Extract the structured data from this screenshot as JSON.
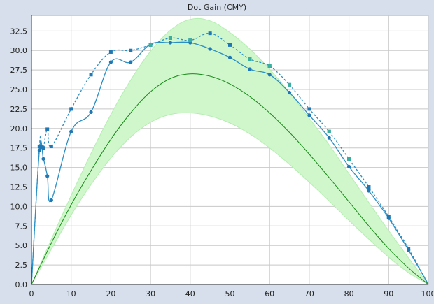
{
  "chart_data": {
    "type": "line",
    "title": "Dot Gain (CMY)",
    "xlabel": "",
    "ylabel": "",
    "xlim": [
      0,
      100
    ],
    "ylim": [
      0,
      34.5
    ],
    "xticks": [
      0,
      10,
      20,
      30,
      40,
      50,
      60,
      70,
      80,
      90,
      100
    ],
    "yticks": [
      0.0,
      2.5,
      5.0,
      7.5,
      10.0,
      12.5,
      15.0,
      17.5,
      20.0,
      22.5,
      25.0,
      27.5,
      30.0,
      32.5
    ],
    "grid": true,
    "legend": "none",
    "colors": {
      "background": "#d6dfeb",
      "plot_background": "#ffffff",
      "grid": "#c8c8c8",
      "band_fill": "#d0f7cc",
      "band_edge": "#b4eeb0",
      "reference_line": "#178a17",
      "measured_solid": "#2a8fc4",
      "measured_dashed": "#2a8fc4",
      "point_square": "#1f78b4",
      "point_circle": "#1f78b4",
      "point_teal": "#3aaf9e"
    },
    "series": [
      {
        "kind": "band",
        "x": [
          0,
          5,
          10,
          15,
          20,
          25,
          30,
          35,
          40,
          45,
          50,
          55,
          60,
          65,
          70,
          75,
          80,
          85,
          90,
          95,
          100
        ],
        "lower": [
          0,
          4.5,
          8.9,
          12.8,
          16.2,
          18.9,
          20.8,
          21.8,
          22.0,
          21.6,
          20.7,
          19.3,
          17.5,
          15.4,
          13.1,
          10.7,
          8.2,
          5.8,
          3.5,
          1.5,
          0
        ],
        "upper": [
          0,
          5.8,
          11.4,
          16.8,
          21.8,
          26.2,
          29.9,
          32.6,
          34.0,
          33.8,
          32.3,
          30.2,
          27.6,
          24.6,
          21.3,
          17.9,
          14.2,
          10.5,
          6.9,
          3.4,
          0
        ]
      },
      {
        "kind": "line",
        "style": "solid",
        "color_key": "reference_line",
        "x": [
          0,
          5,
          10,
          15,
          20,
          25,
          30,
          35,
          40,
          45,
          50,
          55,
          60,
          65,
          70,
          75,
          80,
          85,
          90,
          95,
          100
        ],
        "y": [
          0,
          5.3,
          10.2,
          14.6,
          18.6,
          22.0,
          24.7,
          26.4,
          27.0,
          26.7,
          25.7,
          24.1,
          22.0,
          19.5,
          16.7,
          13.7,
          10.6,
          7.5,
          4.6,
          2.1,
          0
        ]
      },
      {
        "kind": "line",
        "style": "dashed",
        "color_key": "measured_dashed",
        "marker": "square",
        "x": [
          0,
          2,
          2.5,
          3,
          4,
          5,
          10,
          15,
          20,
          25,
          30,
          35,
          40,
          45,
          50,
          55,
          60,
          65,
          70,
          75,
          80,
          85,
          90,
          95,
          100
        ],
        "y": [
          0,
          17.7,
          17.6,
          17.5,
          19.9,
          17.7,
          22.5,
          26.9,
          29.8,
          30.0,
          30.7,
          31.6,
          31.3,
          32.2,
          30.7,
          28.9,
          28.0,
          25.6,
          22.5,
          19.6,
          16.1,
          12.5,
          8.7,
          4.6,
          0
        ]
      },
      {
        "kind": "line",
        "style": "solid",
        "color_key": "measured_solid",
        "marker": "circle",
        "x": [
          0,
          2,
          3,
          4,
          5,
          10,
          15,
          20,
          25,
          30,
          35,
          40,
          45,
          50,
          55,
          60,
          65,
          70,
          75,
          80,
          85,
          90,
          95,
          100
        ],
        "y": [
          0,
          17.2,
          16.1,
          13.9,
          10.8,
          19.6,
          22.1,
          28.5,
          28.5,
          30.8,
          31.0,
          31.0,
          30.2,
          29.1,
          27.6,
          26.9,
          24.6,
          21.7,
          18.8,
          15.1,
          12.0,
          8.5,
          4.4,
          0
        ]
      },
      {
        "kind": "points",
        "color_key": "point_teal",
        "marker": "square",
        "x": [
          30,
          35,
          40,
          55,
          60,
          65,
          75,
          80
        ],
        "y": [
          30.7,
          31.6,
          31.3,
          28.9,
          28.0,
          25.6,
          19.6,
          16.1
        ]
      }
    ]
  }
}
